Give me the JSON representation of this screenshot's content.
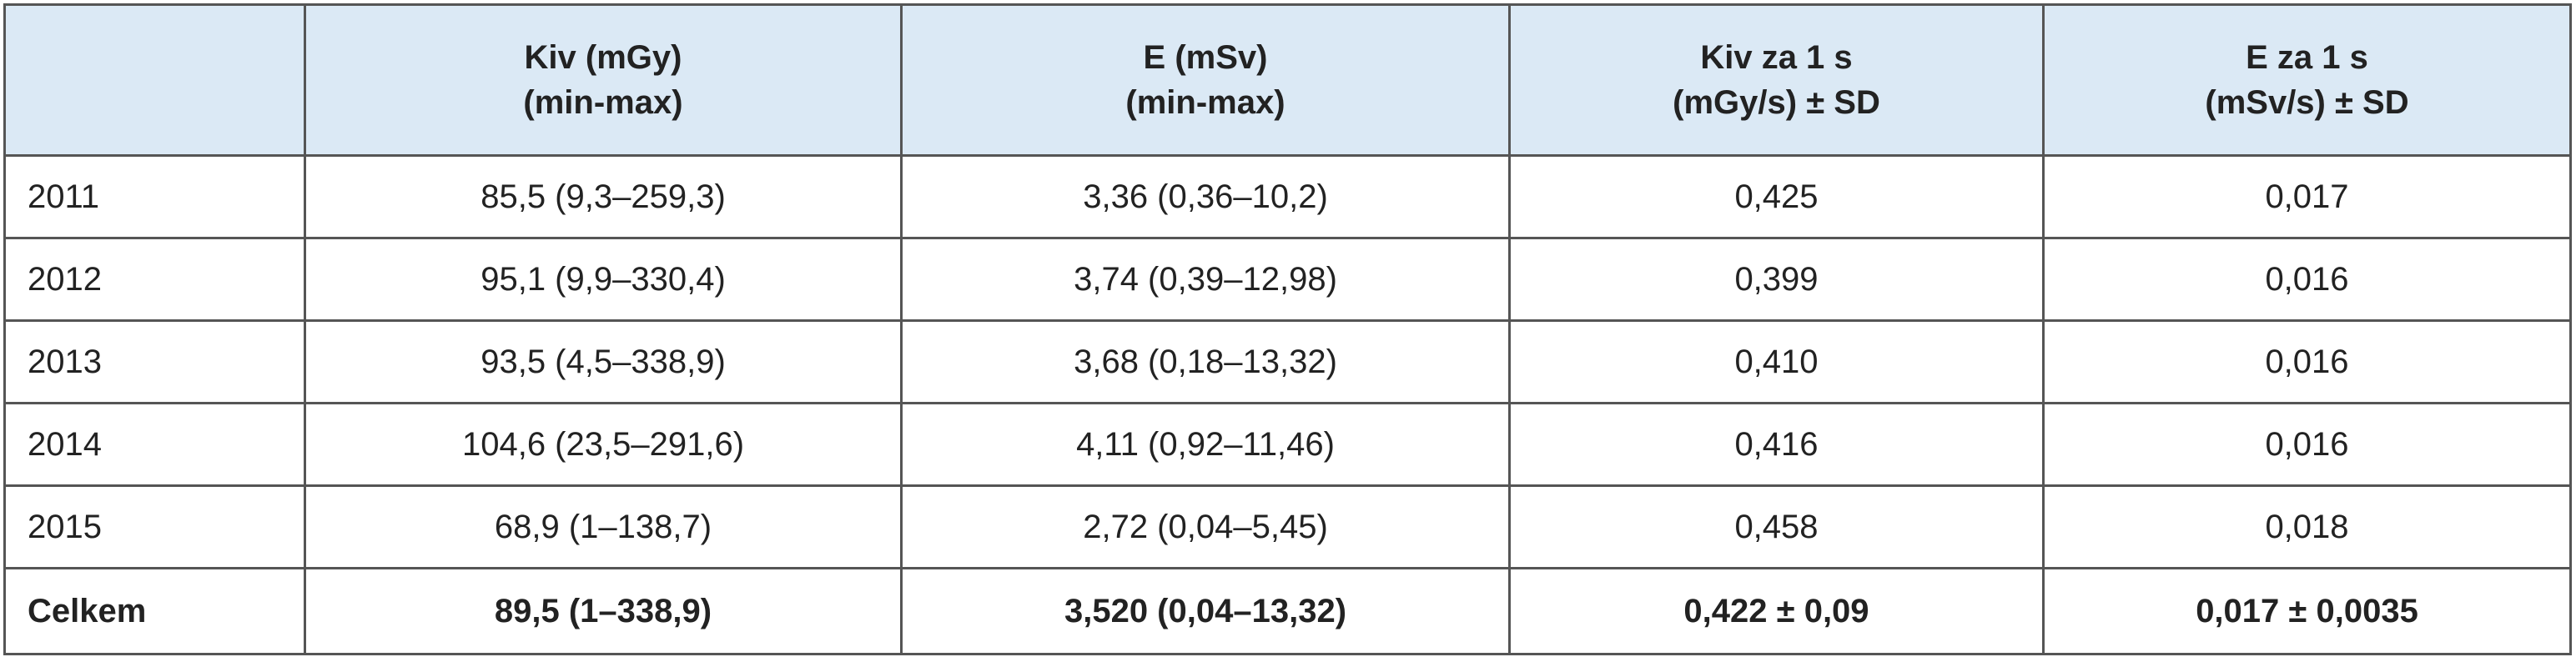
{
  "table": {
    "header": [
      [
        "Kiv (mGy)",
        "(min-max)"
      ],
      [
        "E (mSv)",
        "(min-max)"
      ],
      [
        "Kiv za 1 s",
        "(mGy/s) ± SD"
      ],
      [
        "E za 1 s",
        "(mSv/s) ± SD"
      ]
    ],
    "rows": [
      [
        "2011",
        "85,5 (9,3–259,3)",
        "3,36 (0,36–10,2)",
        "0,425",
        "0,017"
      ],
      [
        "2012",
        "95,1 (9,9–330,4)",
        "3,74 (0,39–12,98)",
        "0,399",
        "0,016"
      ],
      [
        "2013",
        "93,5 (4,5–338,9)",
        "3,68 (0,18–13,32)",
        "0,410",
        "0,016"
      ],
      [
        "2014",
        "104,6 (23,5–291,6)",
        "4,11 (0,92–11,46)",
        "0,416",
        "0,016"
      ],
      [
        "2015",
        "68,9 (1–138,7)",
        "2,72 (0,04–5,45)",
        "0,458",
        "0,018"
      ],
      [
        "Celkem",
        "89,5 (1–338,9)",
        "3,520 (0,04–13,32)",
        "0,422 ± 0,09",
        "0,017 ± 0,0035"
      ]
    ]
  }
}
